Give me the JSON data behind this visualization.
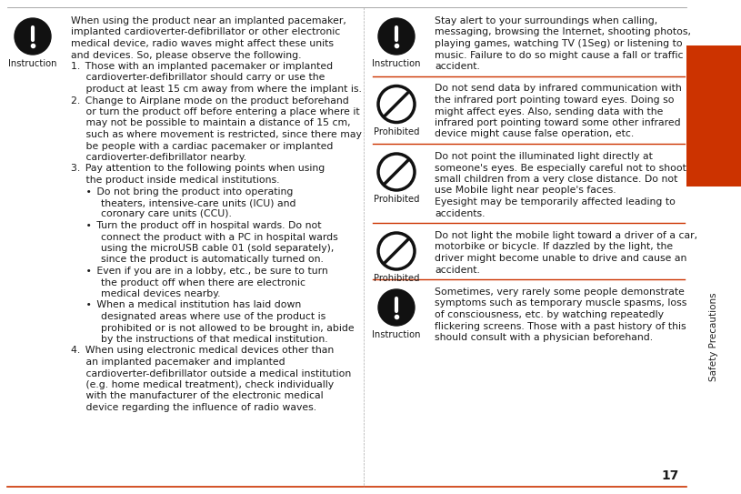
{
  "bg_color": "#ffffff",
  "divider_color": "#cc3300",
  "sidebar_color": "#cc3300",
  "sidebar_text": "Safety Precautions",
  "page_number": "17",
  "text_color": "#1a1a1a",
  "icon_color": "#111111",
  "left_entries": [
    {
      "icon": "instruction",
      "label": "Instruction",
      "text": "When using the product near an implanted pacemaker,\nimplanted cardioverter-defibrillator or other electronic\nmedical device, radio waves might affect these units\nand devices. So, please observe the following.\n1. Those with an implanted pacemaker or implanted\n   cardioverter-defibrillator should carry or use the\n   product at least 15 cm away from where the implant is.\n2. Change to Airplane mode on the product beforehand\n   or turn the product off before entering a place where it\n   may not be possible to maintain a distance of 15 cm,\n   such as where movement is restricted, since there may\n   be people with a cardiac pacemaker or implanted\n   cardioverter-defibrillator nearby.\n3. Pay attention to the following points when using\n   the product inside medical institutions.\n   • Do not bring the product into operating\n      theaters, intensive-care units (ICU) and\n      coronary care units (CCU).\n   • Turn the product off in hospital wards. Do not\n      connect the product with a PC in hospital wards\n      using the microUSB cable 01 (sold separately),\n      since the product is automatically turned on.\n   • Even if you are in a lobby, etc., be sure to turn\n      the product off when there are electronic\n      medical devices nearby.\n   • When a medical institution has laid down\n      designated areas where use of the product is\n      prohibited or is not allowed to be brought in, abide\n      by the instructions of that medical institution.\n4. When using electronic medical devices other than\n   an implanted pacemaker and implanted\n   cardioverter-defibrillator outside a medical institution\n   (e.g. home medical treatment), check individually\n   with the manufacturer of the electronic medical\n   device regarding the influence of radio waves."
    }
  ],
  "right_entries": [
    {
      "icon": "instruction",
      "label": "Instruction",
      "text": "Stay alert to your surroundings when calling,\nmessaging, browsing the Internet, shooting photos,\nplaying games, watching TV (1Seg) or listening to\nmusic. Failure to do so might cause a fall or traffic\naccident."
    },
    {
      "icon": "prohibited",
      "label": "Prohibited",
      "text": "Do not send data by infrared communication with\nthe infrared port pointing toward eyes. Doing so\nmight affect eyes. Also, sending data with the\ninfrared port pointing toward some other infrared\ndevice might cause false operation, etc."
    },
    {
      "icon": "prohibited",
      "label": "Prohibited",
      "text": "Do not point the illuminated light directly at\nsomeone's eyes. Be especially careful not to shoot\nsmall children from a very close distance. Do not\nuse Mobile light near people's faces.\nEyesight may be temporarily affected leading to\naccidents."
    },
    {
      "icon": "prohibited",
      "label": "Prohibited",
      "text": "Do not light the mobile light toward a driver of a car,\nmotorbike or bicycle. If dazzled by the light, the\ndriver might become unable to drive and cause an\naccident."
    },
    {
      "icon": "instruction",
      "label": "Instruction",
      "text": "Sometimes, very rarely some people demonstrate\nsymptoms such as temporary muscle spasms, loss\nof consciousness, etc. by watching repeatedly\nflickering screens. Those with a past history of this\nshould consult with a physician beforehand."
    }
  ]
}
